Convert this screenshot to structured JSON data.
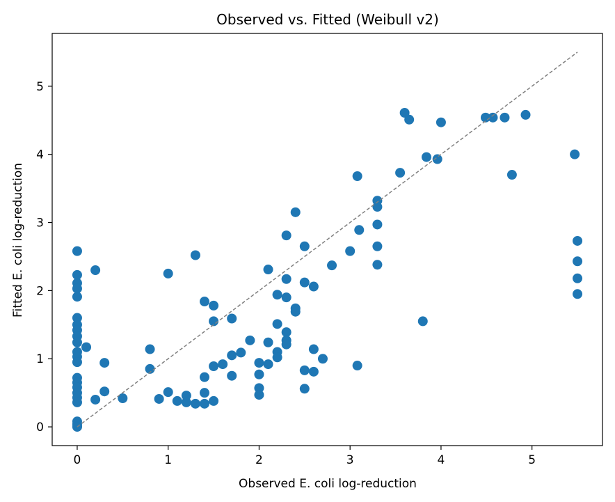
{
  "chart_data": {
    "type": "scatter",
    "title": "Observed vs. Fitted (Weibull v2)",
    "xlabel": "Observed E. coli log-reduction",
    "ylabel": "Fitted E. coli log-reduction",
    "xlim": [
      -0.275,
      5.775
    ],
    "ylim": [
      -0.275,
      5.775
    ],
    "xticks": [
      0,
      1,
      2,
      3,
      4,
      5
    ],
    "yticks": [
      0,
      1,
      2,
      3,
      4,
      5
    ],
    "grid": false,
    "legend": "none",
    "point_color": "#1f77b4",
    "reference_line": {
      "x": [
        0,
        5.5
      ],
      "y": [
        0,
        5.5
      ],
      "color": "#808080",
      "style": "dashed"
    },
    "points": [
      [
        0,
        2.58
      ],
      [
        0,
        2.23
      ],
      [
        0,
        2.11
      ],
      [
        0,
        2.03
      ],
      [
        0,
        1.91
      ],
      [
        0,
        1.6
      ],
      [
        0,
        1.5
      ],
      [
        0,
        1.42
      ],
      [
        0,
        1.33
      ],
      [
        0,
        1.24
      ],
      [
        0,
        1.1
      ],
      [
        0,
        1.03
      ],
      [
        0,
        0.95
      ],
      [
        0,
        0.72
      ],
      [
        0,
        0.65
      ],
      [
        0,
        0.58
      ],
      [
        0,
        0.5
      ],
      [
        0,
        0.43
      ],
      [
        0,
        0.36
      ],
      [
        0,
        0.08
      ],
      [
        0,
        0.04
      ],
      [
        0,
        0.01
      ],
      [
        0,
        0.0
      ],
      [
        0.1,
        1.17
      ],
      [
        0.2,
        2.3
      ],
      [
        0.2,
        0.4
      ],
      [
        0.3,
        0.94
      ],
      [
        0.3,
        0.52
      ],
      [
        0.5,
        0.42
      ],
      [
        0.8,
        1.14
      ],
      [
        0.8,
        0.85
      ],
      [
        0.9,
        0.41
      ],
      [
        1.0,
        2.25
      ],
      [
        1.0,
        0.51
      ],
      [
        1.1,
        0.38
      ],
      [
        1.2,
        0.46
      ],
      [
        1.2,
        0.36
      ],
      [
        1.3,
        2.52
      ],
      [
        1.3,
        0.34
      ],
      [
        1.4,
        1.84
      ],
      [
        1.4,
        0.73
      ],
      [
        1.4,
        0.5
      ],
      [
        1.4,
        0.34
      ],
      [
        1.5,
        1.78
      ],
      [
        1.5,
        1.55
      ],
      [
        1.5,
        0.89
      ],
      [
        1.5,
        0.38
      ],
      [
        1.6,
        0.92
      ],
      [
        1.7,
        1.59
      ],
      [
        1.7,
        1.05
      ],
      [
        1.7,
        0.75
      ],
      [
        1.8,
        1.09
      ],
      [
        1.9,
        1.27
      ],
      [
        2.0,
        0.94
      ],
      [
        2.0,
        0.77
      ],
      [
        2.0,
        0.57
      ],
      [
        2.0,
        0.47
      ],
      [
        2.1,
        2.31
      ],
      [
        2.1,
        1.24
      ],
      [
        2.1,
        0.92
      ],
      [
        2.2,
        1.94
      ],
      [
        2.2,
        1.51
      ],
      [
        2.2,
        1.1
      ],
      [
        2.2,
        1.02
      ],
      [
        2.3,
        2.81
      ],
      [
        2.3,
        2.17
      ],
      [
        2.3,
        1.9
      ],
      [
        2.3,
        1.39
      ],
      [
        2.3,
        1.27
      ],
      [
        2.3,
        1.21
      ],
      [
        2.4,
        3.15
      ],
      [
        2.4,
        1.74
      ],
      [
        2.4,
        1.69
      ],
      [
        2.5,
        2.65
      ],
      [
        2.5,
        2.12
      ],
      [
        2.5,
        0.83
      ],
      [
        2.5,
        0.56
      ],
      [
        2.6,
        2.06
      ],
      [
        2.6,
        1.14
      ],
      [
        2.6,
        0.81
      ],
      [
        2.7,
        1.0
      ],
      [
        2.8,
        2.37
      ],
      [
        3.0,
        2.58
      ],
      [
        3.08,
        3.68
      ],
      [
        3.08,
        0.9
      ],
      [
        3.1,
        2.89
      ],
      [
        3.3,
        3.32
      ],
      [
        3.3,
        3.23
      ],
      [
        3.3,
        2.97
      ],
      [
        3.3,
        2.65
      ],
      [
        3.3,
        2.38
      ],
      [
        3.55,
        3.73
      ],
      [
        3.6,
        4.61
      ],
      [
        3.65,
        4.51
      ],
      [
        3.8,
        1.55
      ],
      [
        3.84,
        3.96
      ],
      [
        3.96,
        3.93
      ],
      [
        4.0,
        4.47
      ],
      [
        4.49,
        4.54
      ],
      [
        4.57,
        4.54
      ],
      [
        4.7,
        4.54
      ],
      [
        4.78,
        3.7
      ],
      [
        4.93,
        4.58
      ],
      [
        5.47,
        4.0
      ],
      [
        5.5,
        2.73
      ],
      [
        5.5,
        2.43
      ],
      [
        5.5,
        2.18
      ],
      [
        5.5,
        1.95
      ]
    ]
  }
}
